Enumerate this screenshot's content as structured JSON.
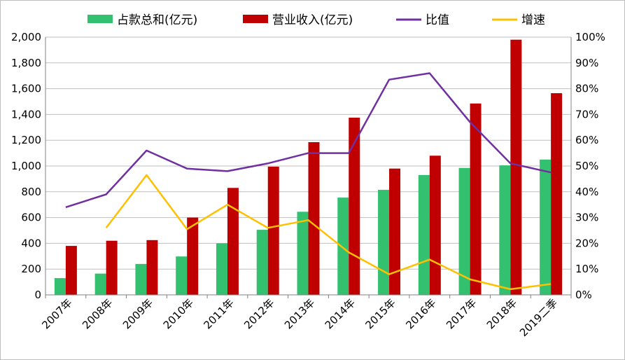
{
  "chart_data": {
    "type": "bar",
    "categories": [
      "2007年",
      "2008年",
      "2009年",
      "2010年",
      "2011年",
      "2012年",
      "2013年",
      "2014年",
      "2015年",
      "2016年",
      "2017年",
      "2018年",
      "2019二季"
    ],
    "series": [
      {
        "name": "占款总和(亿元)",
        "type": "bar",
        "axis": "left",
        "color": "#33c170",
        "values": [
          130,
          165,
          240,
          298,
          400,
          505,
          645,
          755,
          815,
          930,
          985,
          1005,
          1050
        ]
      },
      {
        "name": "营业收入(亿元)",
        "type": "bar",
        "axis": "left",
        "color": "#c00000",
        "values": [
          380,
          420,
          425,
          600,
          830,
          995,
          1185,
          1375,
          980,
          1080,
          1485,
          1980,
          1565
        ]
      },
      {
        "name": "比值",
        "type": "line",
        "axis": "right",
        "color": "#7030a0",
        "values": [
          0.34,
          0.39,
          0.56,
          0.49,
          0.48,
          0.51,
          0.55,
          0.55,
          0.835,
          0.86,
          0.67,
          0.51,
          0.475
        ]
      },
      {
        "name": "增速",
        "type": "line",
        "axis": "right",
        "color": "#ffc000",
        "values": [
          null,
          0.26,
          0.465,
          0.255,
          0.35,
          0.26,
          0.29,
          0.165,
          0.08,
          0.137,
          0.06,
          0.022,
          0.042
        ]
      }
    ],
    "y_left": {
      "range": [
        0,
        2000
      ],
      "ticks": [
        "0",
        "200",
        "400",
        "600",
        "800",
        "1,000",
        "1,200",
        "1,400",
        "1,600",
        "1,800",
        "2,000"
      ]
    },
    "y_right": {
      "range": [
        0,
        1
      ],
      "ticks": [
        "0%",
        "10%",
        "20%",
        "30%",
        "40%",
        "50%",
        "60%",
        "70%",
        "80%",
        "90%",
        "100%"
      ]
    },
    "grid": true,
    "legend": "top"
  }
}
